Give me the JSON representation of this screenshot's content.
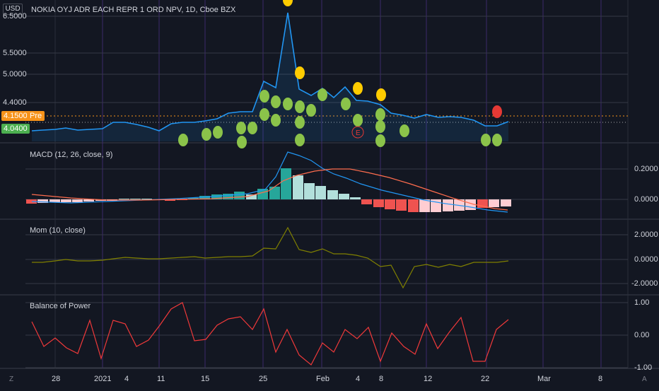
{
  "header": {
    "currency": "USD",
    "title": "NOKIA OYJ ADR EACH REPR 1 ORD NPV, 1D, Cboe BZX"
  },
  "price_axis": {
    "labels": [
      "6.5000",
      "5.5000",
      "5.0000",
      "4.4000",
      "4.1500",
      "4.0400"
    ],
    "current_label": "4.1500",
    "current_badge": "Pre",
    "last_label": "4.0400"
  },
  "panes": {
    "macd": {
      "label": "MACD (12, 26, close, 9)",
      "ticks": [
        "0.2000",
        "0.0000"
      ]
    },
    "mom": {
      "label": "Mom (10, close)",
      "ticks": [
        "2.0000",
        "0.0000",
        "-2.0000"
      ]
    },
    "bop": {
      "label": "Balance of Power",
      "ticks": [
        "1.00",
        "0.00",
        "-1.00"
      ]
    }
  },
  "x_axis": {
    "labels": [
      "28",
      "2021",
      "4",
      "11",
      "15",
      "25",
      "Feb",
      "4",
      "8",
      "12",
      "22",
      "Mar",
      "8"
    ]
  },
  "earnings_marker": "E",
  "corner": {
    "z_icon": "Z",
    "auto_label": "A"
  },
  "colors": {
    "background": "#131722",
    "price_line": "#2196f3",
    "macd_line": "#2196f3",
    "signal_line": "#ff6d4e",
    "hist_up_strong": "#26a69a",
    "hist_up_weak": "#b2dfdb",
    "hist_down_strong": "#ef5350",
    "hist_down_weak": "#ffcdd2",
    "mom_line": "#808000",
    "bop_line": "#f0393a",
    "dot_green": "#8bc34a",
    "dot_yellow": "#ffcc00",
    "dot_red": "#e53935",
    "pre_orange": "#f7931a",
    "last_green": "#4caf50"
  }
}
